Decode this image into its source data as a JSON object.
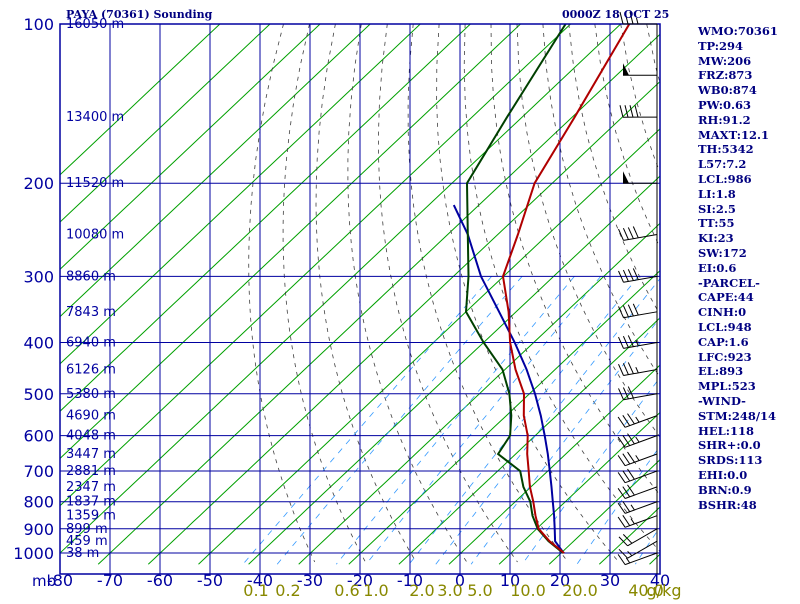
{
  "header": {
    "title_left": "PAYA (70361) Sounding",
    "title_right": "0000Z 18 OCT 25"
  },
  "colors": {
    "frame": "#0000a0",
    "isotherm": "#00a000",
    "dry_adiabat": "#404040",
    "mixing_ratio": "#3399ff",
    "temperature": "#b00000",
    "dewpoint": "#004000",
    "parcel": "#0000a0",
    "wind": "#000000",
    "label_blue": "#0000a0",
    "label_olive": "#888800",
    "index_text": "#000080"
  },
  "chart_data": {
    "type": "skew-t",
    "pressure_axis_label": "mb",
    "pressure_ticks": [
      100,
      200,
      300,
      400,
      500,
      600,
      700,
      800,
      900,
      1000
    ],
    "pressure_range": [
      100,
      1050
    ],
    "temperature_ticks": [
      -80,
      -70,
      -60,
      -50,
      -40,
      -30,
      -20,
      -10,
      0,
      10,
      20,
      30,
      40
    ],
    "bottom_temperature_range": [
      -80,
      40
    ],
    "mixing_ratio_labels": [
      "0.1",
      "0.2",
      "0.6",
      "1.0",
      "2.0",
      "3.0",
      "5.0",
      "10.0",
      "20.0",
      "40.0"
    ],
    "mixing_ratio_unit": "g/kg",
    "mixing_ratio_values": [
      0.1,
      0.2,
      0.6,
      1.0,
      2.0,
      3.0,
      5.0,
      10.0,
      20.0,
      40.0
    ],
    "height_labels": [
      {
        "p": 100,
        "label": "16050 m"
      },
      {
        "p": 150,
        "label": "13400 m"
      },
      {
        "p": 200,
        "label": "11520 m"
      },
      {
        "p": 250,
        "label": "10080 m"
      },
      {
        "p": 300,
        "label": "8860 m"
      },
      {
        "p": 350,
        "label": "7843 m"
      },
      {
        "p": 400,
        "label": "6940 m"
      },
      {
        "p": 450,
        "label": "6126 m"
      },
      {
        "p": 500,
        "label": "5380 m"
      },
      {
        "p": 550,
        "label": "4690 m"
      },
      {
        "p": 600,
        "label": "4048 m"
      },
      {
        "p": 650,
        "label": "3447 m"
      },
      {
        "p": 700,
        "label": "2881 m"
      },
      {
        "p": 750,
        "label": "2347 m"
      },
      {
        "p": 800,
        "label": "1837 m"
      },
      {
        "p": 850,
        "label": "1359 m"
      },
      {
        "p": 900,
        "label": "899 m"
      },
      {
        "p": 950,
        "label": "459 m"
      },
      {
        "p": 1000,
        "label": "38 m"
      }
    ],
    "temperature_profile": [
      {
        "p": 1000,
        "t": 20.6
      },
      {
        "p": 950,
        "t": 15.2
      },
      {
        "p": 900,
        "t": 10.4
      },
      {
        "p": 850,
        "t": 7.0
      },
      {
        "p": 800,
        "t": 3.6
      },
      {
        "p": 750,
        "t": -0.2
      },
      {
        "p": 700,
        "t": -3.8
      },
      {
        "p": 650,
        "t": -7.7
      },
      {
        "p": 600,
        "t": -11.5
      },
      {
        "p": 550,
        "t": -16.5
      },
      {
        "p": 500,
        "t": -21.1
      },
      {
        "p": 450,
        "t": -27.9
      },
      {
        "p": 400,
        "t": -34.7
      },
      {
        "p": 350,
        "t": -41.5
      },
      {
        "p": 300,
        "t": -50.1
      },
      {
        "p": 250,
        "t": -56.0
      },
      {
        "p": 200,
        "t": -63.5
      },
      {
        "p": 150,
        "t": -69.5
      },
      {
        "p": 100,
        "t": -78.3
      }
    ],
    "dewpoint_profile": [
      {
        "p": 1000,
        "t": 20.4
      },
      {
        "p": 950,
        "t": 15.0
      },
      {
        "p": 900,
        "t": 10.2
      },
      {
        "p": 850,
        "t": 6.4
      },
      {
        "p": 800,
        "t": 3.0
      },
      {
        "p": 750,
        "t": -1.5
      },
      {
        "p": 700,
        "t": -5.5
      },
      {
        "p": 650,
        "t": -13.5
      },
      {
        "p": 600,
        "t": -15.0
      },
      {
        "p": 550,
        "t": -19.0
      },
      {
        "p": 500,
        "t": -24.0
      },
      {
        "p": 450,
        "t": -30.5
      },
      {
        "p": 400,
        "t": -40.0
      },
      {
        "p": 350,
        "t": -50.0
      },
      {
        "p": 300,
        "t": -57.0
      },
      {
        "p": 250,
        "t": -66.0
      },
      {
        "p": 200,
        "t": -77.0
      },
      {
        "p": 150,
        "t": -83.0
      },
      {
        "p": 100,
        "t": -91.0
      }
    ],
    "parcel_profile": [
      {
        "p": 1000,
        "t": 20.5
      },
      {
        "p": 950,
        "t": 16.3
      },
      {
        "p": 900,
        "t": 13.6
      },
      {
        "p": 850,
        "t": 10.7
      },
      {
        "p": 800,
        "t": 7.5
      },
      {
        "p": 750,
        "t": 4.1
      },
      {
        "p": 700,
        "t": 0.4
      },
      {
        "p": 650,
        "t": -3.6
      },
      {
        "p": 600,
        "t": -8.1
      },
      {
        "p": 550,
        "t": -13.1
      },
      {
        "p": 500,
        "t": -18.9
      },
      {
        "p": 450,
        "t": -25.7
      },
      {
        "p": 400,
        "t": -33.8
      },
      {
        "p": 350,
        "t": -43.4
      },
      {
        "p": 300,
        "t": -54.5
      },
      {
        "p": 250,
        "t": -66.0
      },
      {
        "p": 220,
        "t": -75.0
      }
    ],
    "wind_barbs": [
      {
        "p": 1000,
        "dir": 250,
        "spd": 15
      },
      {
        "p": 950,
        "dir": 240,
        "spd": 15
      },
      {
        "p": 900,
        "dir": 240,
        "spd": 20
      },
      {
        "p": 850,
        "dir": 250,
        "spd": 25
      },
      {
        "p": 800,
        "dir": 250,
        "spd": 25
      },
      {
        "p": 750,
        "dir": 250,
        "spd": 30
      },
      {
        "p": 700,
        "dir": 250,
        "spd": 30
      },
      {
        "p": 650,
        "dir": 250,
        "spd": 35
      },
      {
        "p": 600,
        "dir": 250,
        "spd": 35
      },
      {
        "p": 550,
        "dir": 250,
        "spd": 35
      },
      {
        "p": 500,
        "dir": 260,
        "spd": 30
      },
      {
        "p": 450,
        "dir": 260,
        "spd": 35
      },
      {
        "p": 400,
        "dir": 260,
        "spd": 35
      },
      {
        "p": 350,
        "dir": 260,
        "spd": 40
      },
      {
        "p": 300,
        "dir": 260,
        "spd": 40
      },
      {
        "p": 250,
        "dir": 260,
        "spd": 40
      },
      {
        "p": 200,
        "dir": 270,
        "spd": 50
      },
      {
        "p": 150,
        "dir": 270,
        "spd": 40
      },
      {
        "p": 125,
        "dir": 270,
        "spd": 50
      },
      {
        "p": 100,
        "dir": 270,
        "spd": 35
      }
    ]
  },
  "indices": [
    "WMO:70361",
    "TP:294",
    "MW:206",
    "FRZ:873",
    "WB0:874",
    "PW:0.63",
    "RH:91.2",
    "MAXT:12.1",
    "TH:5342",
    "L57:7.2",
    "LCL:986",
    "LI:1.8",
    "SI:2.5",
    "TT:55",
    "KI:23",
    "SW:172",
    "EI:0.6",
    "-PARCEL-",
    "CAPE:44",
    "CINH:0",
    "LCL:948",
    "CAP:1.6",
    "LFC:923",
    "EL:893",
    "MPL:523",
    "-WIND-",
    "STM:248/14",
    "HEL:118",
    "SHR+:0.0",
    "SRDS:113",
    "EHI:0.0",
    "BRN:0.9",
    "BSHR:48"
  ]
}
